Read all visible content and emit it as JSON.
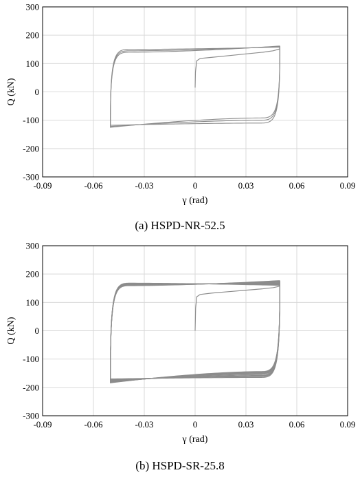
{
  "chart_data": [
    {
      "type": "line",
      "caption": "(a) HSPD-NR-52.5",
      "xlabel": "γ (rad)",
      "ylabel": "Q (kN)",
      "xlim": [
        -0.09,
        0.09
      ],
      "ylim": [
        -300,
        300
      ],
      "xticks": [
        -0.09,
        -0.06,
        -0.03,
        0,
        0.03,
        0.06,
        0.09
      ],
      "xtick_labels": [
        "-0.09",
        "-0.06",
        "-0.03",
        "0",
        "0.03",
        "0.06",
        "0.09"
      ],
      "yticks": [
        -300,
        -200,
        -100,
        0,
        100,
        200,
        300
      ],
      "ytick_labels": [
        "-300",
        "-200",
        "-100",
        "0",
        "100",
        "200",
        "300"
      ],
      "grid": true,
      "line_color": "#8c8c8c",
      "series": [
        {
          "x": [
            0,
            0.0002,
            0.001,
            0.003,
            0.01,
            0.02,
            0.03,
            0.04,
            0.046,
            0.049,
            0.05
          ],
          "y": [
            15,
            70,
            110,
            118,
            122,
            128,
            134,
            140,
            145,
            150,
            152
          ]
        },
        {
          "cycles": 3,
          "max_pos": [
            158,
            160,
            162
          ],
          "max_neg": [
            -118,
            -122,
            -125
          ],
          "knee_pos": [
            150,
            145,
            140
          ],
          "knee_neg": [
            -110,
            -100,
            -92
          ]
        }
      ]
    },
    {
      "type": "line",
      "caption": "(b) HSPD-SR-25.8",
      "xlabel": "γ (rad)",
      "ylabel": "Q (kN)",
      "xlim": [
        -0.09,
        0.09
      ],
      "ylim": [
        -300,
        300
      ],
      "xticks": [
        -0.09,
        -0.06,
        -0.03,
        0,
        0.03,
        0.06,
        0.09
      ],
      "xtick_labels": [
        "-0.09",
        "-0.06",
        "-0.03",
        "0",
        "0.03",
        "0.06",
        "0.09"
      ],
      "yticks": [
        -300,
        -200,
        -100,
        0,
        100,
        200,
        300
      ],
      "ytick_labels": [
        "-300",
        "-200",
        "-100",
        "0",
        "100",
        "200",
        "300"
      ],
      "grid": true,
      "line_color": "#8c8c8c",
      "series": [
        {
          "x": [
            0,
            0.0003,
            0.001,
            0.003,
            0.01,
            0.02,
            0.03,
            0.04,
            0.046,
            0.049,
            0.05
          ],
          "y": [
            0,
            80,
            120,
            128,
            133,
            138,
            143,
            148,
            152,
            156,
            158
          ]
        },
        {
          "cycles": 10,
          "max_pos": [
            160,
            162,
            164,
            166,
            168,
            170,
            172,
            174,
            175,
            177
          ],
          "max_neg": [
            -170,
            -172,
            -174,
            -176,
            -178,
            -180,
            -181,
            -182,
            -183,
            -184
          ],
          "knee_pos": [
            168,
            167,
            166,
            165,
            164,
            163,
            162,
            161,
            160,
            159
          ],
          "knee_neg": [
            -165,
            -162,
            -160,
            -158,
            -155,
            -152,
            -150,
            -148,
            -146,
            -144
          ]
        }
      ]
    }
  ]
}
